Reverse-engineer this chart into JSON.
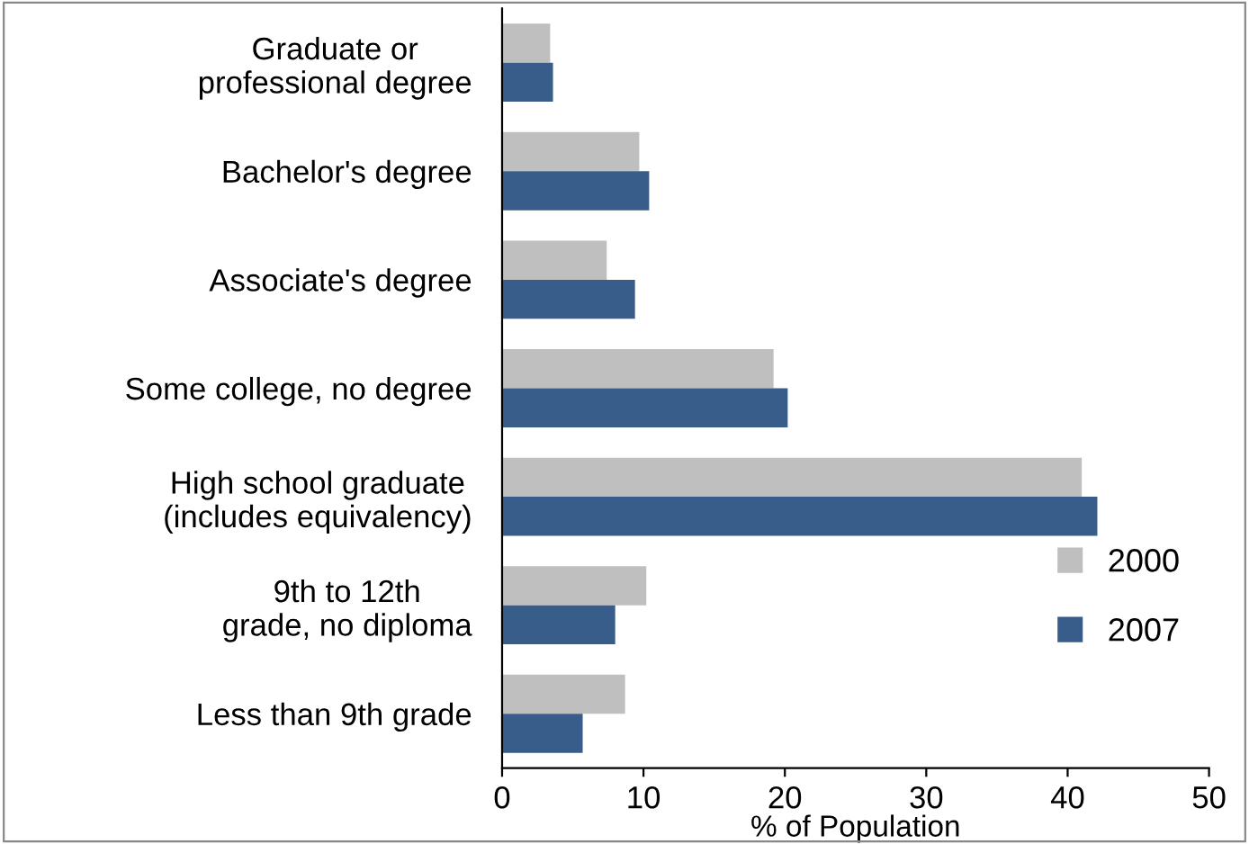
{
  "chart_data": {
    "type": "bar",
    "orientation": "horizontal",
    "xlabel": "% of Population",
    "categories": [
      "Graduate or professional degree",
      "Bachelor's degree",
      "Associate's degree",
      "Some college, no degree",
      "High school graduate (includes equivalency)",
      "9th to 12th grade, no diploma",
      "Less than 9th grade"
    ],
    "series": [
      {
        "name": "2000",
        "color": "#bfbfbf",
        "values": [
          3.4,
          9.7,
          7.4,
          19.2,
          41.0,
          10.2,
          8.7
        ]
      },
      {
        "name": "2007",
        "color": "#385d8a",
        "values": [
          3.6,
          10.4,
          9.4,
          20.2,
          42.1,
          8.0,
          5.7
        ]
      }
    ],
    "xlim": [
      0,
      50
    ],
    "xticks": [
      0,
      10,
      20,
      30,
      40,
      50
    ],
    "grid": false,
    "legend": "lower right"
  }
}
